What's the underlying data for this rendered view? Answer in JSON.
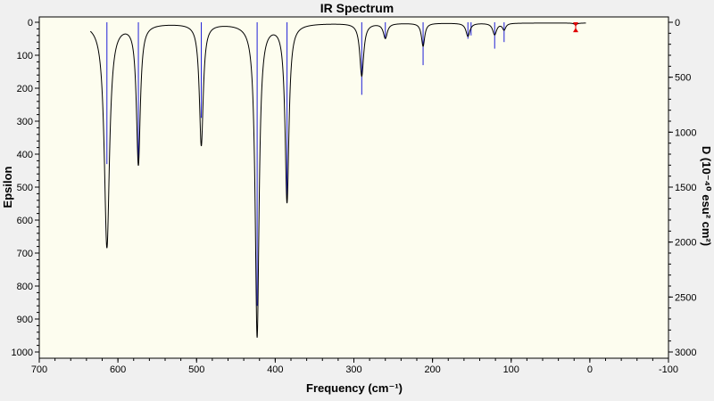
{
  "chart_data": {
    "type": "line",
    "title": "IR Spectrum",
    "xlabel": "Frequency (cm⁻¹)",
    "ylabel_left": "Epsilon",
    "ylabel_right": "D (10⁻⁴⁰ esu² cm²)",
    "xlim": [
      700,
      -100
    ],
    "ylim_left": [
      0,
      1000
    ],
    "ylim_right": [
      0,
      3000
    ],
    "x_ticks": [
      700,
      600,
      500,
      400,
      300,
      200,
      100,
      0,
      -100
    ],
    "y_ticks_left": [
      0,
      100,
      200,
      300,
      400,
      500,
      600,
      700,
      800,
      900,
      1000
    ],
    "y_ticks_right": [
      0,
      500,
      1000,
      1500,
      2000,
      2500,
      3000
    ],
    "grid": false,
    "series": [
      {
        "role": "spectrum",
        "color": "#000000",
        "curve_range": [
          635,
          5
        ],
        "baseline": 2,
        "peaks": [
          {
            "x": 614,
            "epsilon": 680,
            "fwhm": 8
          },
          {
            "x": 574,
            "epsilon": 425,
            "fwhm": 6
          },
          {
            "x": 494,
            "epsilon": 370,
            "fwhm": 6
          },
          {
            "x": 423,
            "epsilon": 950,
            "fwhm": 6
          },
          {
            "x": 385,
            "epsilon": 540,
            "fwhm": 6
          },
          {
            "x": 290,
            "epsilon": 160,
            "fwhm": 6
          },
          {
            "x": 260,
            "epsilon": 45,
            "fwhm": 6
          },
          {
            "x": 212,
            "epsilon": 70,
            "fwhm": 5
          },
          {
            "x": 155,
            "epsilon": 40,
            "fwhm": 6
          },
          {
            "x": 121,
            "epsilon": 35,
            "fwhm": 6
          },
          {
            "x": 109,
            "epsilon": 20,
            "fwhm": 5
          },
          {
            "x": 18,
            "epsilon": 5,
            "fwhm": 5
          }
        ]
      },
      {
        "role": "intensity_sticks",
        "color": "#1f1fd6",
        "sticks": [
          {
            "x": 614,
            "epsilon": 430
          },
          {
            "x": 574,
            "epsilon": 425
          },
          {
            "x": 494,
            "epsilon": 290
          },
          {
            "x": 423,
            "epsilon": 860
          },
          {
            "x": 385,
            "epsilon": 530
          },
          {
            "x": 290,
            "epsilon": 220
          },
          {
            "x": 260,
            "epsilon": 50
          },
          {
            "x": 212,
            "epsilon": 130
          },
          {
            "x": 155,
            "epsilon": 50
          },
          {
            "x": 151,
            "epsilon": 40
          },
          {
            "x": 121,
            "epsilon": 80
          },
          {
            "x": 109,
            "epsilon": 60
          },
          {
            "x": 18,
            "epsilon": 5
          }
        ]
      }
    ],
    "marker": {
      "x": 18,
      "color": "#e00000",
      "epsilon_range": [
        0,
        30
      ]
    }
  }
}
